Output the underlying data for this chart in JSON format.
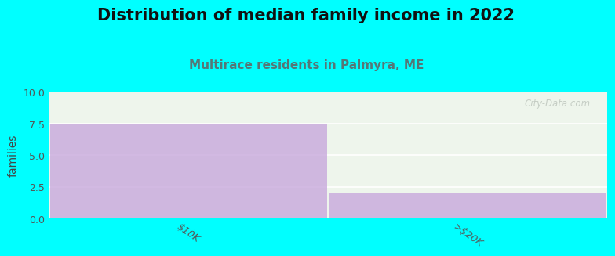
{
  "title": "Distribution of median family income in 2022",
  "subtitle": "Multirace residents in Palmyra, ME",
  "categories": [
    "$10K",
    ">$20K"
  ],
  "values": [
    7.5,
    2.0
  ],
  "ylabel": "families",
  "ylim": [
    0,
    10
  ],
  "yticks": [
    0,
    2.5,
    5,
    7.5,
    10
  ],
  "bar_color": "#c8a8dc",
  "bar_alpha": 0.8,
  "chart_bg_color": "#eef5ec",
  "figure_bg_color": "#00ffff",
  "title_color": "#111111",
  "subtitle_color": "#557777",
  "ylabel_color": "#444444",
  "tick_color": "#555555",
  "grid_color": "#ffffff",
  "title_fontsize": 15,
  "subtitle_fontsize": 11,
  "ylabel_fontsize": 10,
  "xtick_fontsize": 9,
  "ytick_fontsize": 9,
  "watermark_text": "City-Data.com",
  "bar_width": 0.99
}
